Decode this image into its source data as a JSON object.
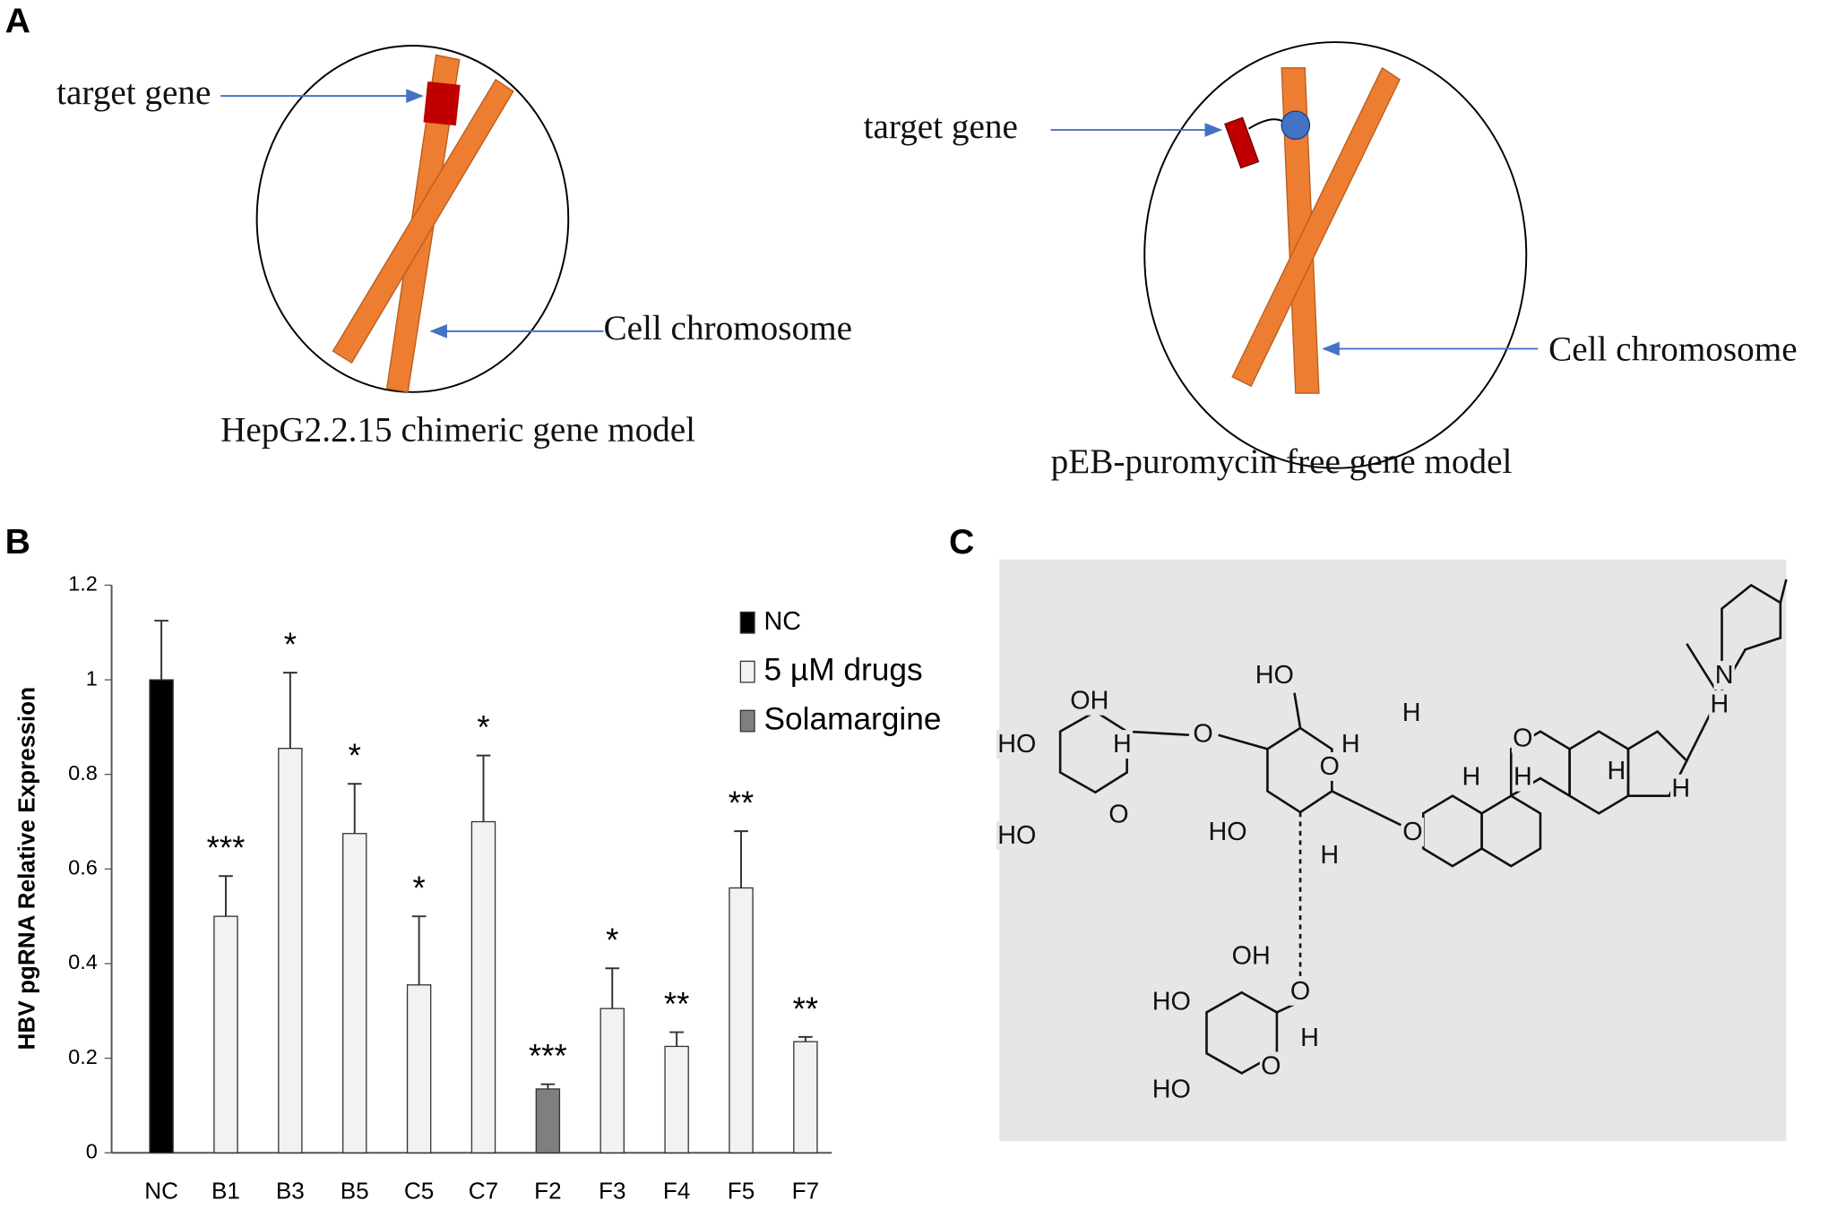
{
  "panel_a": {
    "label": "A",
    "left": {
      "target_label": "target gene",
      "chromosome_label": "Cell chromosome",
      "caption": "HepG2.2.15 chimeric gene model"
    },
    "right": {
      "target_label": "target gene",
      "chromosome_label": "Cell chromosome",
      "caption": "pEB-puromycin free gene model"
    }
  },
  "panel_b": {
    "label": "B"
  },
  "chart_data": {
    "type": "bar",
    "y_label": "HBV pgRNA Relative Expression",
    "categories": [
      "NC",
      "B1",
      "B3",
      "B5",
      "C5",
      "C7",
      "F2",
      "F3",
      "F4",
      "F5",
      "F7"
    ],
    "series": [
      {
        "name": "NC",
        "color": "#000000",
        "values": [
          1,
          null,
          null,
          null,
          null,
          null,
          null,
          null,
          null,
          null,
          null
        ],
        "errors": [
          0.125,
          null,
          null,
          null,
          null,
          null,
          null,
          null,
          null,
          null,
          null
        ]
      },
      {
        "name": "5 µM drugs",
        "color": "#f2f2f2",
        "values": [
          null,
          0.5,
          0.855,
          0.675,
          0.355,
          0.7,
          null,
          0.305,
          0.225,
          0.56,
          0.235
        ],
        "errors": [
          null,
          0.085,
          0.16,
          0.105,
          0.145,
          0.14,
          null,
          0.085,
          0.03,
          0.12,
          0.01
        ]
      },
      {
        "name": "Solamargine",
        "color": "#7f7f7f",
        "values": [
          null,
          null,
          null,
          null,
          null,
          null,
          0.135,
          null,
          null,
          null,
          null
        ],
        "errors": [
          null,
          null,
          null,
          null,
          null,
          null,
          0.01,
          null,
          null,
          null,
          null
        ]
      }
    ],
    "annotations": [
      null,
      "***",
      "*",
      "*",
      "*",
      "*",
      "***",
      "*",
      "**",
      "**",
      "**"
    ],
    "ylim": [
      0,
      1.2
    ],
    "yticks": [
      0,
      0.2,
      0.4,
      0.6,
      0.8,
      1,
      1.2
    ],
    "grid": false,
    "legend": "top-right"
  },
  "panel_c": {
    "label": "C",
    "atoms": [
      "OH",
      "H",
      "HO",
      "O",
      "HO",
      "O",
      "HO",
      "O",
      "HO",
      "H",
      "O",
      "OH",
      "O",
      "HO",
      "H",
      "HO",
      "O",
      "H",
      "H",
      "O",
      "N",
      "H",
      "H",
      "H",
      "H",
      "H"
    ]
  }
}
